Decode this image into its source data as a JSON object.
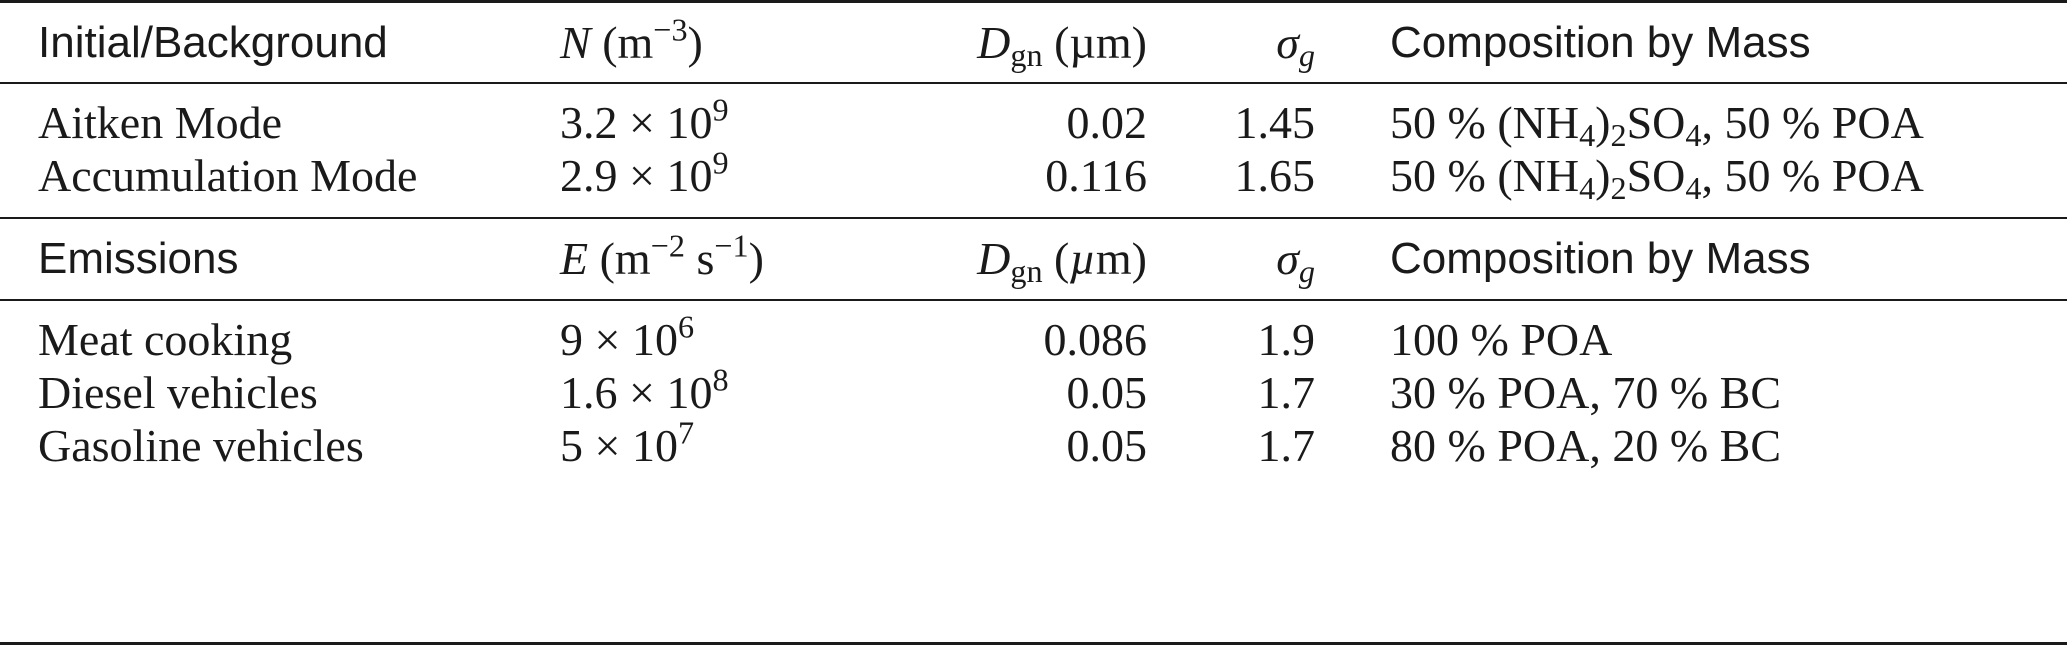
{
  "background_header": {
    "col1": "Initial/Background",
    "col2_symbol": "N",
    "col2_unit_base": "(m",
    "col2_unit_exp": "−3",
    "col2_unit_close": ")",
    "col3_symbol": "D",
    "col3_sub": "gn",
    "col3_unit": "(µm)",
    "col4_symbol": "σ",
    "col4_sub": "g",
    "col5": "Composition by Mass"
  },
  "background_rows": [
    {
      "name": "Aitken Mode",
      "n_mantissa": "3.2 × 10",
      "n_exp": "9",
      "dgn": "0.02",
      "sigma": "1.45",
      "comp_a": "50 % (NH",
      "comp_sub1": "4",
      "comp_b": ")",
      "comp_sub2": "2",
      "comp_c": "SO",
      "comp_sub3": "4",
      "comp_d": ", 50 % POA"
    },
    {
      "name": "Accumulation Mode",
      "n_mantissa": "2.9 × 10",
      "n_exp": "9",
      "dgn": "0.116",
      "sigma": "1.65",
      "comp_a": "50 % (NH",
      "comp_sub1": "4",
      "comp_b": ")",
      "comp_sub2": "2",
      "comp_c": "SO",
      "comp_sub3": "4",
      "comp_d": ", 50 % POA"
    }
  ],
  "emissions_header": {
    "col1": "Emissions",
    "col2_symbol": "E",
    "col2_unit_a": "(m",
    "col2_exp_a": "−2",
    "col2_unit_b": " s",
    "col2_exp_b": "−1",
    "col2_unit_close": ")",
    "col3_symbol": "D",
    "col3_sub": "gn",
    "col3_unit_open": "(",
    "col3_unit_mu": "µ",
    "col3_unit_close": "m)",
    "col4_symbol": "σ",
    "col4_sub": "g",
    "col5": "Composition by Mass"
  },
  "emissions_rows": [
    {
      "name": "Meat cooking",
      "e_mantissa": "9 × 10",
      "e_exp": "6",
      "dgn": "0.086",
      "sigma": "1.9",
      "comp": "100 % POA"
    },
    {
      "name": "Diesel vehicles",
      "e_mantissa": "1.6 × 10",
      "e_exp": "8",
      "dgn": "0.05",
      "sigma": "1.7",
      "comp": "30 % POA, 70 % BC"
    },
    {
      "name": "Gasoline vehicles",
      "e_mantissa": "5 × 10",
      "e_exp": "7",
      "dgn": "0.05",
      "sigma": "1.7",
      "comp": "80 % POA, 20 % BC"
    }
  ]
}
